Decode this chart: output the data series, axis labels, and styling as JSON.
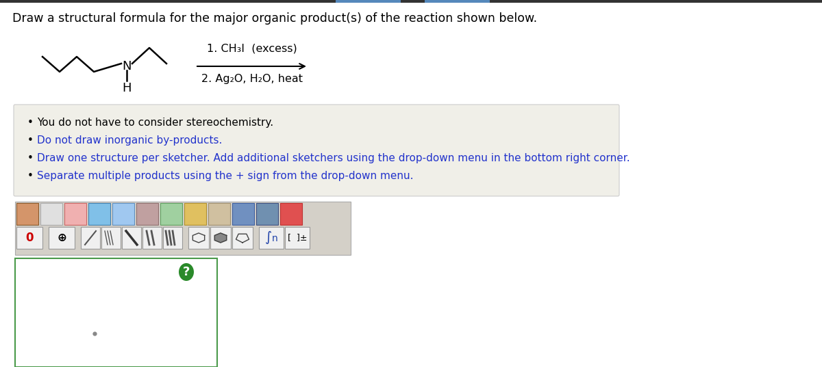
{
  "title": "Draw a structural formula for the major organic product(s) of the reaction shown below.",
  "title_color": "#000000",
  "title_fontsize": 12.5,
  "reaction_step1": "1. CH₃I  (excess)",
  "reaction_step2": "2. Ag₂O, H₂O, heat",
  "bullet_points": [
    "You do not have to consider stereochemistry.",
    "Do not draw inorganic by-products.",
    "Draw one structure per sketcher. Add additional sketchers using the drop-down menu in the bottom right corner.",
    "Separate multiple products using the + sign from the drop-down menu."
  ],
  "bullet_color_black": "#000000",
  "bullet_color_blue": "#2233cc",
  "bg_color": "#f0efe8",
  "white": "#ffffff",
  "page_bg": "#ffffff",
  "sketcher_border": "#4a9a4a",
  "question_mark_bg": "#2a8a2a",
  "top_bar_left": "#5588bb",
  "top_bar_right": "#5588bb",
  "top_dark_bar": "#333333",
  "toolbar_outer_bg": "#d4d0c8",
  "toolbar_inner_bg": "#e8e8e0",
  "icon_border": "#999999"
}
